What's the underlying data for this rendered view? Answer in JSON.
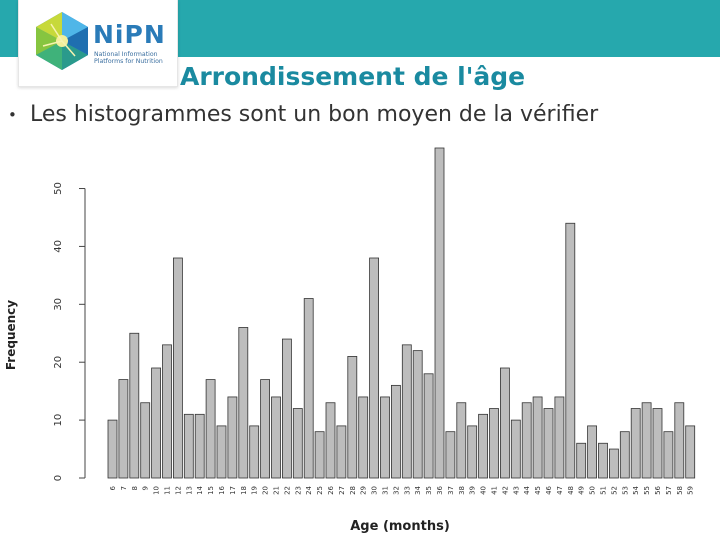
{
  "header": {
    "logo": {
      "name": "NiPN",
      "tagline": [
        "National Information",
        "Platforms for Nutrition"
      ]
    },
    "title": "Arrondissement de l'âge"
  },
  "content": {
    "bullet_marker": "•",
    "bullet_text": "Les histogrammes sont un bon moyen de la vérifier"
  },
  "colors": {
    "header_bar": "#26a8ad",
    "title": "#1a8aa0",
    "bar_fill": "#bdbdbd",
    "bar_stroke": "#333333"
  },
  "chart_data": {
    "type": "bar",
    "xlabel": "Age (months)",
    "ylabel": "Frequency",
    "ylim": [
      0,
      57
    ],
    "yticks": [
      0,
      10,
      20,
      30,
      40,
      50
    ],
    "grid": false,
    "categories": [
      "6",
      "7",
      "8",
      "9",
      "10",
      "11",
      "12",
      "13",
      "14",
      "15",
      "16",
      "17",
      "18",
      "19",
      "20",
      "21",
      "22",
      "23",
      "24",
      "25",
      "26",
      "27",
      "28",
      "29",
      "30",
      "31",
      "32",
      "33",
      "34",
      "35",
      "36",
      "37",
      "38",
      "39",
      "40",
      "41",
      "42",
      "43",
      "44",
      "45",
      "46",
      "47",
      "48",
      "49",
      "50",
      "51",
      "52",
      "53",
      "54",
      "55",
      "56",
      "57",
      "58",
      "59"
    ],
    "values": [
      10,
      17,
      25,
      13,
      19,
      23,
      38,
      11,
      11,
      17,
      9,
      14,
      26,
      9,
      17,
      14,
      24,
      12,
      31,
      8,
      13,
      9,
      21,
      14,
      38,
      14,
      16,
      23,
      22,
      18,
      57,
      8,
      13,
      9,
      11,
      12,
      19,
      10,
      13,
      14,
      12,
      14,
      44,
      6,
      9,
      6,
      5,
      8,
      12,
      13,
      12,
      8,
      13,
      9
    ]
  }
}
